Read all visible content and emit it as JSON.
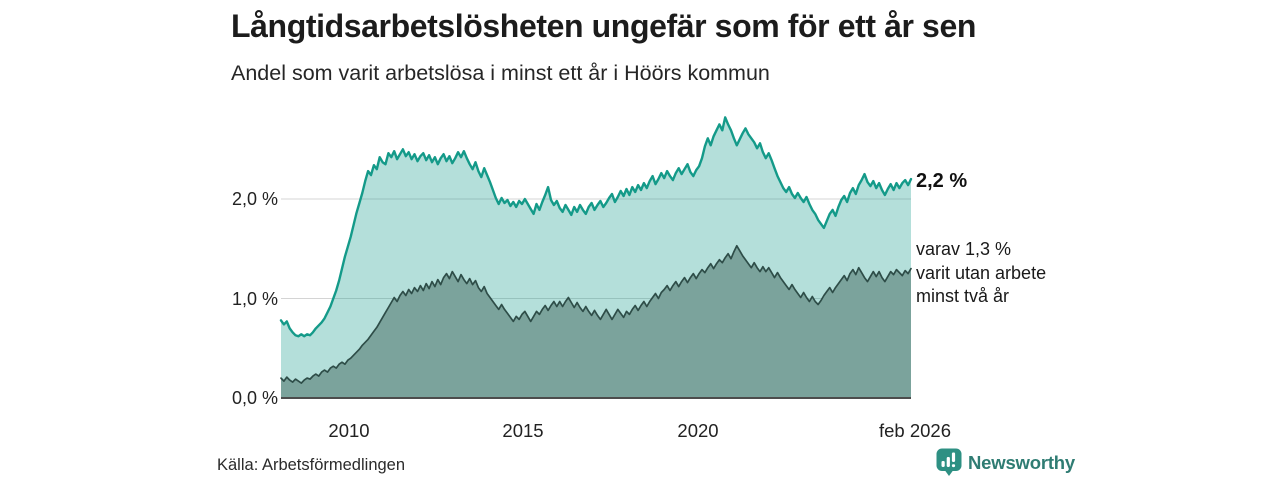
{
  "header": {
    "title": "Långtidsarbetslösheten ungefär som för ett år sen",
    "subtitle": "Andel som varit arbetslösa i minst ett år i Höörs kommun"
  },
  "annotations": {
    "end_value_total": "2,2 %",
    "end_note_lines": [
      "varav 1,3 %",
      "varit utan arbete",
      "minst två år"
    ]
  },
  "footer": {
    "source": "Källa: Arbetsförmedlingen",
    "brand": "Newsworthy"
  },
  "colors": {
    "accent_teal": "#149A89",
    "dark_line": "#2E4D48",
    "fill_light": "rgba(23,157,140,0.32)",
    "fill_dark": "#7BA39C",
    "grid": "#D4D4D4",
    "axis": "#4D4D4D",
    "brand_teal": "#2F7C73",
    "logo_teal": "#2E9083"
  },
  "chart_data": {
    "type": "area",
    "title": "Långtidsarbetslösheten ungefär som för ett år sen",
    "subtitle": "Andel som varit arbetslösa i minst ett år i Höörs kommun",
    "xlabel": "",
    "ylabel": "",
    "x_axis_ticks": [
      "2010",
      "2015",
      "2020",
      "feb 2026"
    ],
    "y_axis_ticks": [
      "0,0 %",
      "1,0 %",
      "2,0 %"
    ],
    "ylim": [
      0,
      3.0
    ],
    "xlim_years": [
      2008.0,
      2026.0833
    ],
    "grid_y_percent": [
      1.0,
      2.0
    ],
    "grid": true,
    "legend_position": "none",
    "x_start_year": 2008,
    "x_step_months": 1,
    "series": [
      {
        "name": "Andel arbetslösa minst ett år",
        "end_label": "2,2 %",
        "end_value": 2.2,
        "color": "#149A89",
        "fill": "rgba(23,157,140,0.32)",
        "line_width": 2.4,
        "values": [
          0.78,
          0.74,
          0.77,
          0.7,
          0.66,
          0.63,
          0.62,
          0.64,
          0.62,
          0.64,
          0.63,
          0.66,
          0.7,
          0.73,
          0.76,
          0.8,
          0.86,
          0.92,
          1.0,
          1.08,
          1.18,
          1.3,
          1.42,
          1.52,
          1.62,
          1.74,
          1.86,
          1.96,
          2.06,
          2.18,
          2.28,
          2.24,
          2.34,
          2.3,
          2.42,
          2.37,
          2.35,
          2.46,
          2.42,
          2.48,
          2.4,
          2.45,
          2.5,
          2.43,
          2.47,
          2.4,
          2.45,
          2.38,
          2.43,
          2.46,
          2.39,
          2.44,
          2.37,
          2.42,
          2.35,
          2.41,
          2.45,
          2.38,
          2.43,
          2.36,
          2.41,
          2.47,
          2.42,
          2.48,
          2.41,
          2.35,
          2.3,
          2.37,
          2.28,
          2.22,
          2.31,
          2.24,
          2.17,
          2.09,
          2.01,
          1.95,
          2.01,
          1.96,
          1.99,
          1.93,
          1.97,
          1.92,
          1.98,
          1.95,
          2.0,
          1.95,
          1.9,
          1.85,
          1.95,
          1.89,
          1.97,
          2.04,
          2.12,
          1.99,
          1.94,
          1.98,
          1.91,
          1.87,
          1.94,
          1.89,
          1.84,
          1.92,
          1.87,
          1.94,
          1.89,
          1.85,
          1.92,
          1.96,
          1.89,
          1.94,
          1.98,
          1.92,
          1.96,
          2.01,
          2.05,
          1.97,
          2.02,
          2.08,
          2.03,
          2.1,
          2.04,
          2.12,
          2.07,
          2.14,
          2.09,
          2.16,
          2.11,
          2.18,
          2.23,
          2.15,
          2.2,
          2.26,
          2.21,
          2.28,
          2.23,
          2.19,
          2.26,
          2.31,
          2.25,
          2.3,
          2.35,
          2.27,
          2.23,
          2.29,
          2.33,
          2.41,
          2.53,
          2.61,
          2.54,
          2.63,
          2.69,
          2.75,
          2.69,
          2.82,
          2.75,
          2.69,
          2.61,
          2.54,
          2.6,
          2.66,
          2.71,
          2.65,
          2.61,
          2.57,
          2.51,
          2.56,
          2.47,
          2.41,
          2.46,
          2.39,
          2.31,
          2.23,
          2.17,
          2.11,
          2.07,
          2.12,
          2.05,
          2.01,
          2.06,
          2.01,
          1.97,
          2.02,
          1.95,
          1.89,
          1.85,
          1.79,
          1.75,
          1.71,
          1.78,
          1.85,
          1.89,
          1.83,
          1.92,
          1.99,
          2.03,
          1.97,
          2.06,
          2.11,
          2.05,
          2.14,
          2.19,
          2.25,
          2.17,
          2.13,
          2.18,
          2.11,
          2.16,
          2.09,
          2.04,
          2.1,
          2.15,
          2.09,
          2.16,
          2.11,
          2.16,
          2.19,
          2.14,
          2.2
        ]
      },
      {
        "name": "varav utan arbete minst två år",
        "end_label": "varav 1,3 % varit utan arbete minst två år",
        "end_value": 1.3,
        "color": "#2E4D48",
        "fill": "#7BA39C",
        "line_width": 1.7,
        "values": [
          0.2,
          0.17,
          0.21,
          0.18,
          0.16,
          0.19,
          0.17,
          0.15,
          0.18,
          0.2,
          0.19,
          0.22,
          0.24,
          0.22,
          0.26,
          0.28,
          0.26,
          0.3,
          0.32,
          0.3,
          0.34,
          0.36,
          0.34,
          0.38,
          0.4,
          0.43,
          0.46,
          0.49,
          0.53,
          0.56,
          0.59,
          0.63,
          0.67,
          0.71,
          0.76,
          0.81,
          0.86,
          0.91,
          0.96,
          1.01,
          0.97,
          1.03,
          1.07,
          1.03,
          1.09,
          1.05,
          1.11,
          1.07,
          1.13,
          1.08,
          1.15,
          1.1,
          1.17,
          1.12,
          1.19,
          1.14,
          1.21,
          1.25,
          1.2,
          1.27,
          1.22,
          1.17,
          1.24,
          1.19,
          1.15,
          1.2,
          1.14,
          1.18,
          1.11,
          1.07,
          1.12,
          1.05,
          1.01,
          0.97,
          0.93,
          0.89,
          0.94,
          0.89,
          0.85,
          0.81,
          0.77,
          0.82,
          0.79,
          0.84,
          0.87,
          0.82,
          0.77,
          0.82,
          0.87,
          0.84,
          0.89,
          0.93,
          0.88,
          0.93,
          0.97,
          0.92,
          0.97,
          0.92,
          0.97,
          1.01,
          0.96,
          0.91,
          0.96,
          0.91,
          0.87,
          0.92,
          0.87,
          0.83,
          0.88,
          0.83,
          0.79,
          0.84,
          0.89,
          0.84,
          0.79,
          0.84,
          0.89,
          0.85,
          0.81,
          0.87,
          0.84,
          0.89,
          0.93,
          0.88,
          0.93,
          0.97,
          0.92,
          0.97,
          1.01,
          1.05,
          1.0,
          1.06,
          1.09,
          1.13,
          1.08,
          1.13,
          1.17,
          1.12,
          1.17,
          1.21,
          1.16,
          1.21,
          1.25,
          1.2,
          1.25,
          1.29,
          1.26,
          1.31,
          1.35,
          1.3,
          1.35,
          1.39,
          1.36,
          1.41,
          1.45,
          1.4,
          1.47,
          1.53,
          1.48,
          1.43,
          1.39,
          1.35,
          1.31,
          1.36,
          1.31,
          1.27,
          1.32,
          1.27,
          1.31,
          1.26,
          1.21,
          1.26,
          1.21,
          1.17,
          1.13,
          1.09,
          1.14,
          1.09,
          1.05,
          1.01,
          1.06,
          1.01,
          0.97,
          1.02,
          0.97,
          0.94,
          0.98,
          1.03,
          1.07,
          1.11,
          1.06,
          1.11,
          1.15,
          1.19,
          1.23,
          1.18,
          1.25,
          1.29,
          1.24,
          1.31,
          1.26,
          1.21,
          1.17,
          1.22,
          1.27,
          1.22,
          1.27,
          1.21,
          1.17,
          1.22,
          1.27,
          1.24,
          1.29,
          1.26,
          1.23,
          1.28,
          1.25,
          1.3
        ]
      }
    ]
  }
}
